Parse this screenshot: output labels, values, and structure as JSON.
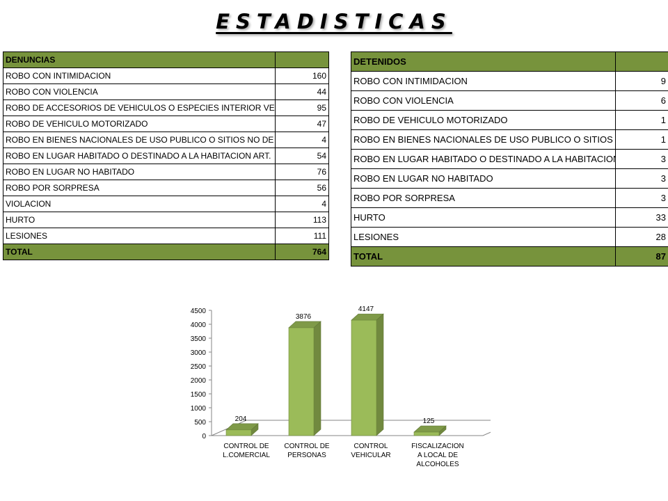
{
  "page": {
    "title": "ESTADISTICAS"
  },
  "denuncias": {
    "header": "DENUNCIAS",
    "rows": [
      {
        "label": "ROBO CON INTIMIDACION",
        "value": "160"
      },
      {
        "label": "ROBO CON VIOLENCIA",
        "value": "44"
      },
      {
        "label": "ROBO DE ACCESORIOS DE VEHICULOS O ESPECIES INTERIOR VEH",
        "value": "95"
      },
      {
        "label": "ROBO DE VEHICULO MOTORIZADO",
        "value": "47"
      },
      {
        "label": "ROBO EN BIENES NACIONALES DE USO PUBLICO O SITIOS NO DE",
        "value": "4"
      },
      {
        "label": "ROBO EN LUGAR HABITADO O DESTINADO A LA HABITACION ART.",
        "value": "54"
      },
      {
        "label": "ROBO EN LUGAR NO HABITADO",
        "value": "76"
      },
      {
        "label": "ROBO POR SORPRESA",
        "value": "56"
      },
      {
        "label": "VIOLACION",
        "value": "4"
      },
      {
        "label": "HURTO",
        "value": "113"
      },
      {
        "label": "LESIONES",
        "value": "111"
      }
    ],
    "total": {
      "label": "TOTAL",
      "value": "764"
    }
  },
  "detenidos": {
    "header": "DETENIDOS",
    "rows": [
      {
        "label": "ROBO CON INTIMIDACION",
        "value": "9"
      },
      {
        "label": "ROBO CON VIOLENCIA",
        "value": "6"
      },
      {
        "label": "ROBO DE VEHICULO MOTORIZADO",
        "value": "1"
      },
      {
        "label": "ROBO EN BIENES NACIONALES DE USO PUBLICO O SITIOS NO DE",
        "value": "1"
      },
      {
        "label": "ROBO EN LUGAR HABITADO O DESTINADO A LA HABITACION ART.",
        "value": "3"
      },
      {
        "label": "ROBO EN LUGAR NO HABITADO",
        "value": "3"
      },
      {
        "label": "ROBO POR SORPRESA",
        "value": "3"
      },
      {
        "label": "HURTO",
        "value": "33"
      },
      {
        "label": "LESIONES",
        "value": "28"
      }
    ],
    "total": {
      "label": "TOTAL",
      "value": "87"
    }
  },
  "colors": {
    "table_header": "#77933c",
    "bar_front": "#9bbb59",
    "bar_side": "#71893f",
    "bar_top": "#7f9a48"
  },
  "chart_data": {
    "type": "bar",
    "style": "3d",
    "categories": [
      [
        "CONTROL DE",
        "L.COMERCIAL"
      ],
      [
        "CONTROL DE",
        "PERSONAS"
      ],
      [
        "CONTROL",
        "VEHICULAR"
      ],
      [
        "FISCALIZACION",
        "A LOCAL DE",
        "ALCOHOLES"
      ]
    ],
    "values": [
      204,
      3876,
      4147,
      125
    ],
    "data_labels": [
      "204",
      "3876",
      "4147",
      "125"
    ],
    "ylim": [
      0,
      4500
    ],
    "yticks": [
      "0",
      "500",
      "1000",
      "1500",
      "2000",
      "2500",
      "3000",
      "3500",
      "4000",
      "4500"
    ],
    "grid": false,
    "legend": "none"
  }
}
